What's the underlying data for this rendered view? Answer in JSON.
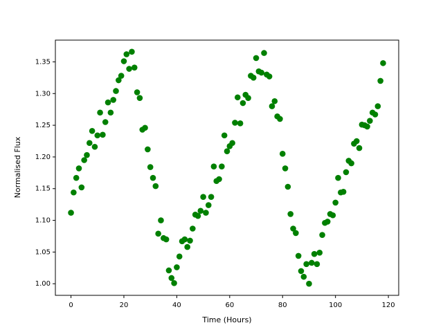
{
  "chart_data": {
    "type": "scatter",
    "xlabel": "Time (Hours)",
    "ylabel": "Normalised Flux",
    "series": [
      {
        "color": "#008000",
        "x": [
          0,
          1,
          2,
          3,
          4,
          5,
          6,
          7,
          8,
          9,
          10,
          11,
          12,
          13,
          14,
          15,
          16,
          17,
          18,
          19,
          20,
          21,
          22,
          23,
          24,
          25,
          26,
          27,
          28,
          29,
          30,
          31,
          32,
          33,
          34,
          35,
          36,
          37,
          38,
          39,
          40,
          41,
          42,
          43,
          44,
          45,
          46,
          47,
          48,
          49,
          50,
          51,
          52,
          53,
          54,
          55,
          56,
          57,
          58,
          59,
          60,
          61,
          62,
          63,
          64,
          65,
          66,
          67,
          68,
          69,
          70,
          71,
          72,
          73,
          74,
          75,
          76,
          77,
          78,
          79,
          80,
          81,
          82,
          83,
          84,
          85,
          86,
          87,
          88,
          89,
          90,
          91,
          92,
          93,
          94,
          95,
          96,
          97,
          98,
          99,
          100,
          101,
          102,
          103,
          104,
          105,
          106,
          107,
          108,
          109,
          110,
          111,
          112,
          113,
          114,
          115,
          116,
          117,
          118
        ],
        "values": [
          1.112,
          1.144,
          1.167,
          1.182,
          1.152,
          1.195,
          1.203,
          1.222,
          1.241,
          1.216,
          1.234,
          1.27,
          1.235,
          1.255,
          1.286,
          1.27,
          1.29,
          1.304,
          1.321,
          1.328,
          1.351,
          1.362,
          1.339,
          1.366,
          1.341,
          1.302,
          1.293,
          1.243,
          1.246,
          1.212,
          1.184,
          1.167,
          1.154,
          1.079,
          1.1,
          1.072,
          1.07,
          1.021,
          1.009,
          1.001,
          1.026,
          1.043,
          1.067,
          1.07,
          1.058,
          1.068,
          1.087,
          1.109,
          1.107,
          1.115,
          1.137,
          1.112,
          1.124,
          1.137,
          1.185,
          1.162,
          1.165,
          1.185,
          1.234,
          1.209,
          1.217,
          1.222,
          1.254,
          1.294,
          1.253,
          1.285,
          1.298,
          1.293,
          1.328,
          1.325,
          1.356,
          1.335,
          1.333,
          1.364,
          1.33,
          1.327,
          1.28,
          1.288,
          1.264,
          1.26,
          1.205,
          1.182,
          1.153,
          1.11,
          1.087,
          1.08,
          1.044,
          1.02,
          1.011,
          1.031,
          1.0,
          1.033,
          1.047,
          1.031,
          1.049,
          1.077,
          1.096,
          1.098,
          1.11,
          1.108,
          1.128,
          1.167,
          1.144,
          1.145,
          1.176,
          1.194,
          1.19,
          1.221,
          1.225,
          1.214,
          1.251,
          1.25,
          1.248,
          1.257,
          1.27,
          1.267,
          1.28,
          1.32,
          1.348
        ]
      }
    ],
    "xlim": [
      -5.9,
      123.9
    ],
    "xticks": [
      0,
      20,
      40,
      60,
      80,
      100,
      120
    ],
    "ylim": [
      0.9817,
      1.3843
    ],
    "yticks": [
      {
        "value": 1.0,
        "label": "1.00"
      },
      1.05,
      {
        "value": 1.1,
        "label": "1.10"
      },
      1.15,
      {
        "value": 1.2,
        "label": "1.20"
      },
      1.25,
      {
        "value": 1.3,
        "label": "1.30"
      },
      1.35
    ],
    "grid": false
  }
}
